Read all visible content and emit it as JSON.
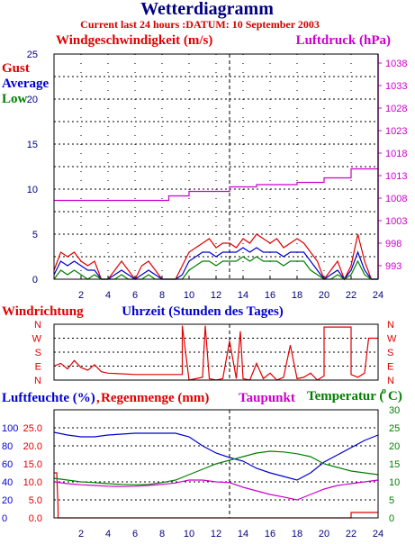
{
  "header": {
    "title": "Wetterdiagramm",
    "subtitle": "Current last 24 hours :DATUM: 10 September 2003"
  },
  "colors": {
    "red": "#e00000",
    "blue": "#0000d0",
    "green": "#008000",
    "magenta": "#cc00cc",
    "navy": "#000080",
    "frame": "#000000"
  },
  "chart_data": [
    {
      "type": "line",
      "id": "wind",
      "xlabel": "",
      "xlim": [
        0,
        24
      ],
      "x_ticks": [
        2,
        4,
        6,
        8,
        10,
        12,
        14,
        16,
        18,
        20,
        22,
        24
      ],
      "x_tick_labels": [
        "2",
        "4",
        "6",
        "8",
        "10",
        "12",
        "14",
        "16",
        "18",
        "20",
        "22",
        "24"
      ],
      "left_axis": {
        "label": "Windgeschwindigkeit (m/s)",
        "ylim": [
          0,
          25
        ],
        "ticks": [
          0,
          5,
          10,
          15,
          20,
          25
        ],
        "tick_labels": [
          "0",
          "5",
          "10",
          "15",
          "20",
          "25"
        ],
        "color": "#000080"
      },
      "right_axis": {
        "label": "Luftdruck (hPa)",
        "ylim": [
          990,
          1040
        ],
        "ticks": [
          993,
          998,
          1003,
          1008,
          1013,
          1018,
          1023,
          1028,
          1033,
          1038
        ],
        "tick_labels": [
          "993",
          "998",
          "1003",
          "1008",
          "1013",
          "1018",
          "1023",
          "1028",
          "1033",
          "1038"
        ],
        "color": "#cc00cc"
      },
      "legend": [
        "Gust",
        "Average",
        "Low"
      ],
      "grid": true,
      "series": [
        {
          "name": "Gust",
          "axis": "left",
          "color": "#e00000",
          "x": [
            0,
            0.5,
            1,
            1.5,
            2,
            2.5,
            3,
            3.5,
            4,
            4.5,
            5,
            5.5,
            6,
            6.5,
            7,
            7.5,
            8,
            8.5,
            9,
            9.5,
            10,
            10.5,
            11,
            11.5,
            12,
            12.5,
            13,
            13.5,
            14,
            14.5,
            15,
            15.5,
            16,
            16.5,
            17,
            17.5,
            18,
            18.5,
            19,
            19.5,
            20,
            20.5,
            21,
            21.5,
            22,
            22.5,
            23,
            23.5,
            24
          ],
          "values": [
            1,
            3,
            2.5,
            3,
            2,
            1.5,
            2,
            0,
            0,
            1,
            2,
            1,
            0,
            1.5,
            2,
            1,
            0,
            0,
            0,
            1.5,
            3,
            3.5,
            4,
            4.5,
            3.5,
            4,
            4,
            3.5,
            4.5,
            4,
            5,
            4.5,
            4,
            4.5,
            3.5,
            4,
            4.5,
            4,
            3,
            2,
            0,
            1,
            2,
            0,
            1.5,
            5,
            2,
            0,
            0
          ]
        },
        {
          "name": "Average",
          "axis": "left",
          "color": "#0000d0",
          "x": [
            0,
            0.5,
            1,
            1.5,
            2,
            2.5,
            3,
            3.5,
            4,
            4.5,
            5,
            5.5,
            6,
            6.5,
            7,
            7.5,
            8,
            8.5,
            9,
            9.5,
            10,
            10.5,
            11,
            11.5,
            12,
            12.5,
            13,
            13.5,
            14,
            14.5,
            15,
            15.5,
            16,
            16.5,
            17,
            17.5,
            18,
            18.5,
            19,
            19.5,
            20,
            20.5,
            21,
            21.5,
            22,
            22.5,
            23,
            23.5,
            24
          ],
          "values": [
            0.5,
            2,
            1.5,
            2,
            1.5,
            1,
            1,
            0,
            0,
            0.5,
            1,
            0.5,
            0,
            0.5,
            1,
            0.5,
            0,
            0,
            0,
            0.5,
            2,
            2.5,
            3,
            3,
            2.5,
            3,
            3,
            3,
            3.5,
            3,
            3.5,
            3,
            3,
            3,
            2.5,
            3,
            3,
            3,
            2,
            1,
            0,
            0.5,
            1,
            0,
            1,
            3,
            1,
            0,
            0
          ]
        },
        {
          "name": "Low",
          "axis": "left",
          "color": "#008000",
          "x": [
            0,
            0.5,
            1,
            1.5,
            2,
            2.5,
            3,
            3.5,
            4,
            4.5,
            5,
            5.5,
            6,
            6.5,
            7,
            7.5,
            8,
            8.5,
            9,
            9.5,
            10,
            10.5,
            11,
            11.5,
            12,
            12.5,
            13,
            13.5,
            14,
            14.5,
            15,
            15.5,
            16,
            16.5,
            17,
            17.5,
            18,
            18.5,
            19,
            19.5,
            20,
            20.5,
            21,
            21.5,
            22,
            22.5,
            23,
            23.5,
            24
          ],
          "values": [
            0,
            1,
            0.5,
            1,
            0.5,
            0,
            0.5,
            0,
            0,
            0,
            0.5,
            0,
            0,
            0,
            0.5,
            0,
            0,
            0,
            0,
            0,
            1,
            1.5,
            2,
            2,
            1.5,
            2,
            2,
            2,
            2.5,
            2,
            2.5,
            2,
            2,
            2,
            1.5,
            2,
            2,
            2,
            1,
            0.5,
            0,
            0,
            0.5,
            0,
            0.5,
            2,
            0.5,
            0,
            0
          ]
        },
        {
          "name": "Luftdruck",
          "axis": "right",
          "color": "#cc00cc",
          "x": [
            0,
            8.5,
            8.5,
            10,
            10,
            13,
            13,
            15,
            15,
            18,
            18,
            20,
            20,
            22,
            22,
            24
          ],
          "values": [
            1007.5,
            1007.5,
            1008.5,
            1008.5,
            1009.5,
            1009.5,
            1010.5,
            1010.5,
            1011,
            1011,
            1011.5,
            1011.5,
            1012.5,
            1012.5,
            1014.5,
            1014.5
          ]
        }
      ]
    },
    {
      "type": "line",
      "id": "direction",
      "left_label": "Windrichtung",
      "center_label": "Uhrzeit (Stunden des Tages)",
      "xlim": [
        0,
        24
      ],
      "y_categories": [
        "N",
        "W",
        "S",
        "E",
        "N"
      ],
      "series": [
        {
          "name": "Windrichtung",
          "color": "#e00000",
          "x": [
            0,
            0.5,
            1,
            1.5,
            2,
            2.5,
            3,
            3.5,
            4,
            6,
            8,
            9.5,
            9.5,
            10,
            11,
            11.2,
            11.5,
            12,
            12.5,
            13,
            13.5,
            13.8,
            14,
            14.5,
            15,
            15.5,
            16,
            16.5,
            17,
            17.5,
            18,
            18.5,
            19,
            19.5,
            20,
            20,
            22,
            22,
            22.5,
            23,
            23.3,
            23.5,
            24
          ],
          "values": [
            3,
            2.8,
            3.2,
            2.6,
            3.1,
            3.3,
            2.9,
            3.4,
            3.5,
            3.6,
            3.6,
            3.6,
            0.1,
            4,
            3.8,
            0.1,
            3.9,
            4,
            3.9,
            1.2,
            3.9,
            0.5,
            3.9,
            4,
            2.8,
            3.9,
            3.5,
            4,
            3.8,
            1.5,
            3.9,
            3.8,
            3.5,
            4,
            3.7,
            0.2,
            0.2,
            3.6,
            3.8,
            3.5,
            1,
            1,
            1
          ]
        }
      ]
    },
    {
      "type": "line",
      "id": "humidity",
      "labels": {
        "humidity": "Luftfeuchte (%)",
        "comma": ",",
        "rain": "Regenmenge (mm)",
        "dew": "Taupunkt",
        "temp": "Temperatur (",
        "temp_unit": "C)",
        "degree": "o"
      },
      "xlim": [
        0,
        24
      ],
      "x_ticks": [
        2,
        4,
        6,
        8,
        10,
        12,
        14,
        16,
        18,
        20,
        22,
        24
      ],
      "x_tick_labels": [
        "2",
        "4",
        "6",
        "8",
        "10",
        "12",
        "14",
        "16",
        "18",
        "20",
        "22",
        "24"
      ],
      "humidity_axis": {
        "ylim": [
          0,
          120
        ],
        "ticks": [
          0,
          20,
          40,
          60,
          80,
          100
        ],
        "tick_labels": [
          "0",
          "20",
          "40",
          "60",
          "80",
          "100"
        ]
      },
      "rain_axis": {
        "ylim": [
          0,
          30
        ],
        "ticks": [
          0,
          5,
          10,
          15,
          20,
          25
        ],
        "tick_labels": [
          "0.0",
          "5.0",
          "10.0",
          "15.0",
          "20.0",
          "25.0"
        ]
      },
      "temp_axis": {
        "ylim": [
          0,
          30
        ],
        "ticks": [
          0,
          5,
          10,
          15,
          20,
          25,
          30
        ],
        "tick_labels": [
          "0",
          "5",
          "10",
          "15",
          "20",
          "25",
          "30"
        ]
      },
      "series": [
        {
          "name": "Luftfeuchte",
          "axis": "humidity",
          "color": "#0000d0",
          "x": [
            0,
            1,
            2,
            3,
            4,
            5,
            6,
            7,
            8,
            9,
            10,
            11,
            12,
            13,
            14,
            15,
            16,
            17,
            18,
            19,
            20,
            21,
            22,
            23,
            24
          ],
          "values": [
            95,
            92,
            90,
            90,
            92,
            93,
            94,
            94,
            94,
            94,
            90,
            80,
            72,
            67,
            63,
            55,
            50,
            46,
            42,
            50,
            62,
            70,
            78,
            86,
            92
          ]
        },
        {
          "name": "Regenmenge",
          "axis": "rain",
          "color": "#e00000",
          "x": [
            0,
            0.2,
            0.3,
            0.3,
            22,
            22,
            24
          ],
          "values": [
            12.5,
            12.5,
            3,
            0,
            0,
            1.5,
            1.5
          ]
        },
        {
          "name": "Temperatur",
          "axis": "temp",
          "color": "#008000",
          "x": [
            0,
            1,
            2,
            3,
            4,
            5,
            6,
            7,
            8,
            9,
            10,
            11,
            12,
            13,
            14,
            15,
            16,
            17,
            18,
            19,
            20,
            21,
            22,
            23,
            24
          ],
          "values": [
            11,
            10.5,
            10,
            9.8,
            9.5,
            9.3,
            9.2,
            9.3,
            9.8,
            10.5,
            12,
            13.5,
            15,
            16,
            17,
            18,
            18.5,
            18.3,
            17.8,
            17,
            15,
            14,
            13,
            12.5,
            12
          ]
        },
        {
          "name": "Taupunkt",
          "axis": "temp",
          "color": "#cc00cc",
          "x": [
            0,
            1,
            2,
            3,
            4,
            5,
            6,
            7,
            8,
            9,
            10,
            11,
            12,
            13,
            14,
            15,
            16,
            17,
            18,
            19,
            20,
            21,
            22,
            23,
            24
          ],
          "values": [
            10,
            9.5,
            9.2,
            9,
            8.8,
            8.7,
            8.8,
            9,
            9.3,
            9.7,
            10.5,
            10.5,
            10,
            9.8,
            8.5,
            7.5,
            6.5,
            5.8,
            5,
            6.5,
            8,
            9,
            9.5,
            10,
            10.5
          ]
        }
      ]
    }
  ]
}
